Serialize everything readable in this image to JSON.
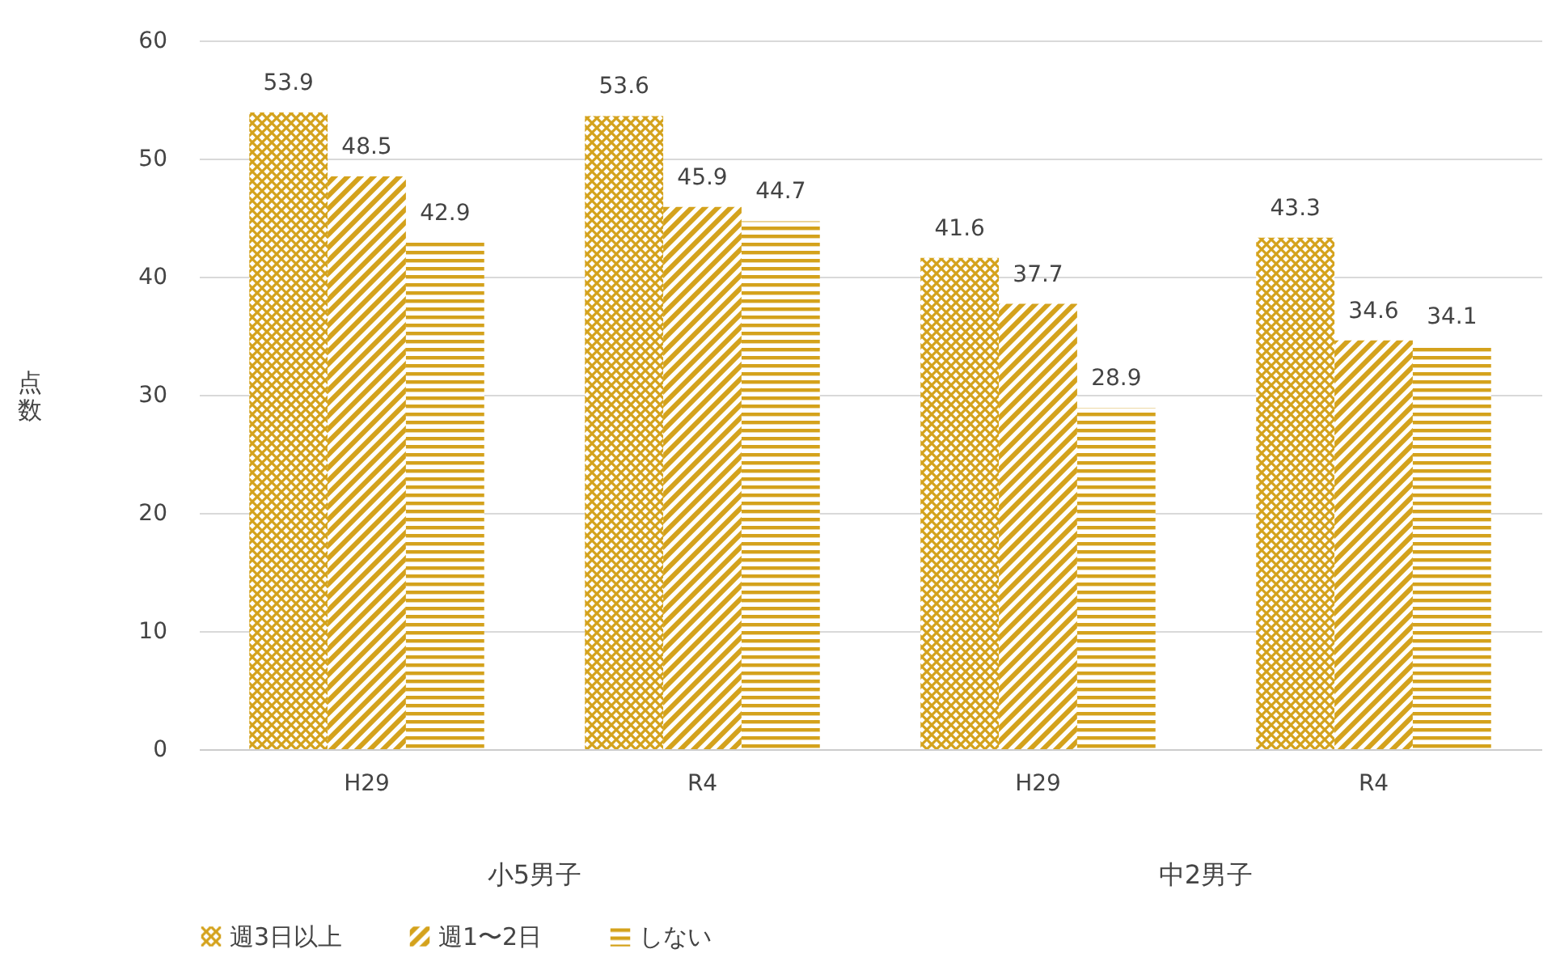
{
  "chart_data": {
    "type": "bar",
    "ylabel": "点数",
    "categories": [
      "H29",
      "R4",
      "H29",
      "R4"
    ],
    "annotations": [
      "小5男子",
      "中2男子"
    ],
    "series": [
      {
        "name": "週3日以上",
        "color": "#d4a21c",
        "values": [
          53.9,
          53.6,
          41.6,
          43.3
        ]
      },
      {
        "name": "週1〜2日",
        "color": "#d4a21c",
        "values": [
          48.5,
          45.9,
          37.7,
          34.6
        ]
      },
      {
        "name": "しない",
        "color": "#d4a21c",
        "values": [
          42.9,
          44.7,
          28.9,
          34.1
        ]
      }
    ],
    "ylim": [
      0,
      60
    ],
    "yticks": [
      0,
      10,
      20,
      30,
      40,
      50,
      60
    ],
    "grid": "y",
    "legend": "bottom",
    "data_labels": true
  }
}
